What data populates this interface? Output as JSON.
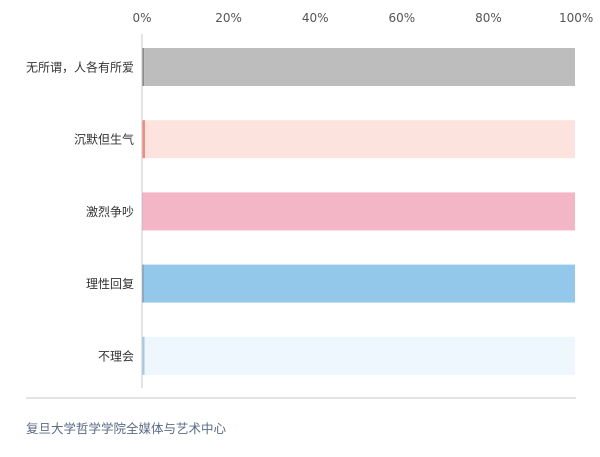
{
  "chart_data": {
    "type": "bar",
    "orientation": "horizontal",
    "stacked": true,
    "categories": [
      "无所谓，人各有所爱",
      "沉默但生气",
      "激烈争吵",
      "理性回复",
      "不理会"
    ],
    "series": [
      {
        "values": [
          0.5,
          0.7,
          0.2,
          0.4,
          0.6
        ]
      },
      {
        "values": [
          99.5,
          99.3,
          99.8,
          99.6,
          99.4
        ]
      }
    ],
    "x_ticks": [
      "0%",
      "20%",
      "40%",
      "60%",
      "80%",
      "100%"
    ],
    "xlim": [
      0,
      100
    ],
    "grid": false,
    "legend": "none",
    "colors": {
      "accent": [
        "#8a8a8a",
        "#f28b82",
        "#e7889f",
        "#6a8cb0",
        "#a3cbe7"
      ],
      "fill": [
        "#bdbdbd",
        "#fde3dd",
        "#f3b6c6",
        "#94c8ea",
        "#eef6fe"
      ]
    }
  },
  "footer": {
    "source": "复旦大学哲学学院全媒体与艺术中心"
  }
}
